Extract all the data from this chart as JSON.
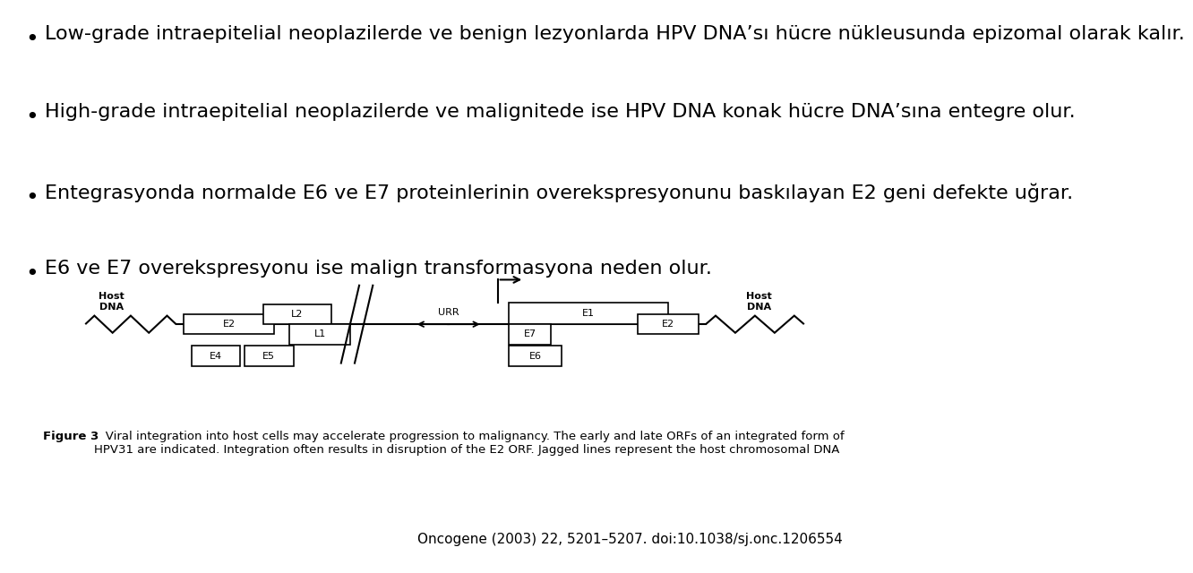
{
  "background_color": "#ffffff",
  "bullet_points": [
    "Low-grade intraepitelial neoplazilerde ve benign lezyonlarda HPV DNA’sı hücre nükleusunda epizomal olarak kalır.",
    "High-grade intraepitelial neoplazilerde ve malignitede ise HPV DNA konak hücre DNA’sına entegre olur.",
    "Entegrasyonda normalde E6 ve E7 proteinlerinin overekspresyonunu baskılayan E2 geni defekte uğrar.",
    "E6 ve E7 overekspresyonu ise malign transformasyona neden olur."
  ],
  "bullet_fontsize": 16,
  "figure_caption_bold": "Figure 3",
  "figure_caption_normal": "   Viral integration into host cells may accelerate progression to malignancy. The early and late ORFs of an integrated form of\nHPV31 are indicated. Integration often results in disruption of the E2 ORF. Jagged lines represent the host chromosomal DNA",
  "caption_fontsize": 9.5,
  "footer": "Oncogene (2003) 22, 5201–5207. doi:10.1038/sj.onc.1206554",
  "footer_fontsize": 11,
  "text_color": "#000000"
}
